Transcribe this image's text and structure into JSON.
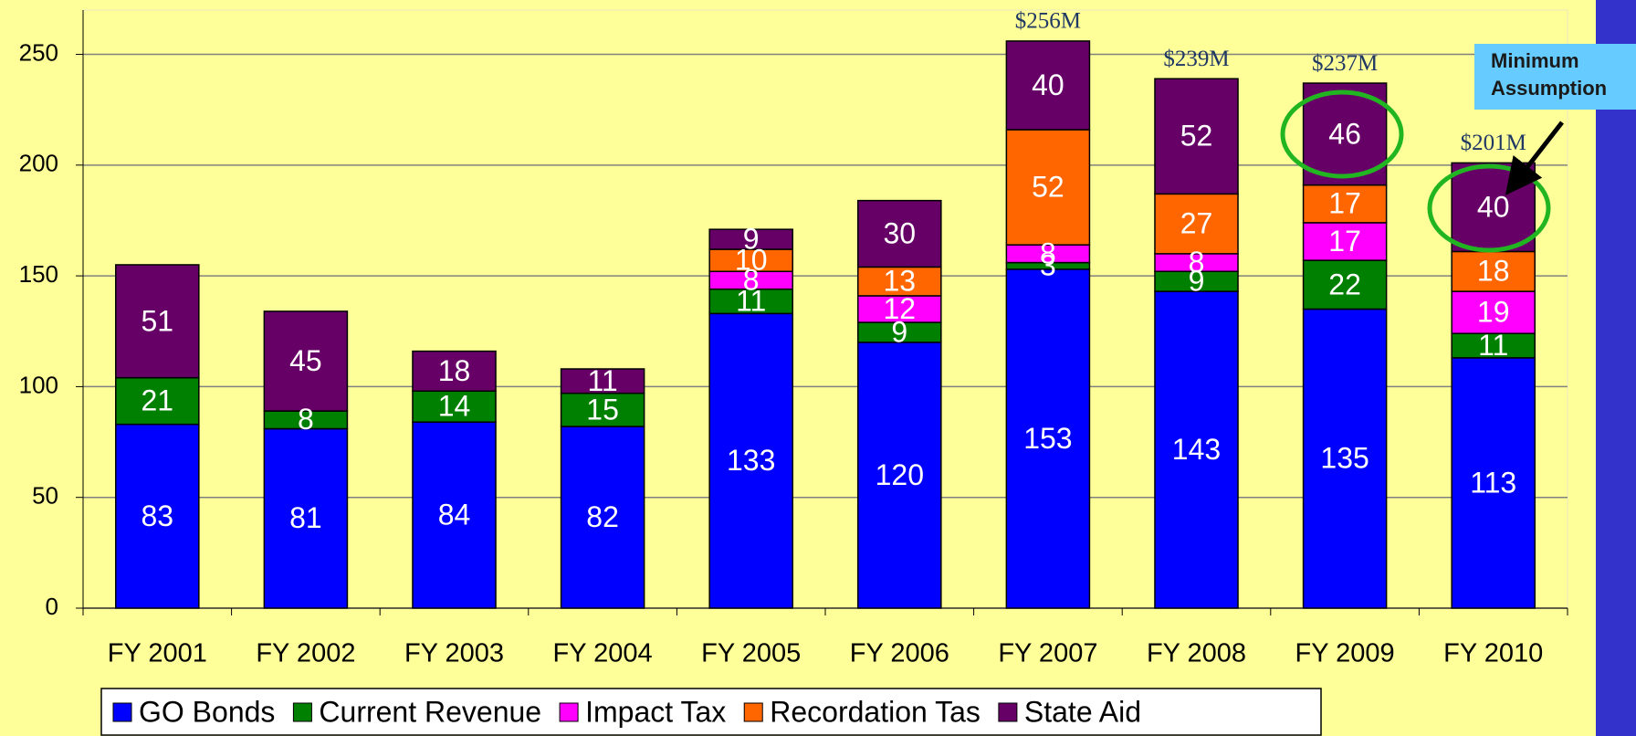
{
  "chart_data": {
    "type": "stacked_bar",
    "categories": [
      "FY 2001",
      "FY 2002",
      "FY 2003",
      "FY 2004",
      "FY 2005",
      "FY 2006",
      "FY 2007",
      "FY 2008",
      "FY 2009",
      "FY 2010"
    ],
    "series": [
      {
        "name": "GO Bonds",
        "color": "#0000ff",
        "values": [
          83,
          81,
          84,
          82,
          133,
          120,
          153,
          143,
          135,
          113
        ]
      },
      {
        "name": "Current Revenue",
        "color": "#008000",
        "values": [
          21,
          8,
          14,
          15,
          11,
          9,
          3,
          9,
          22,
          11
        ]
      },
      {
        "name": "Impact Tax",
        "color": "#ff00ff",
        "values": [
          null,
          null,
          null,
          null,
          8,
          12,
          8,
          8,
          17,
          19
        ]
      },
      {
        "name": "Recordation Tas",
        "color": "#ff6600",
        "values": [
          null,
          null,
          null,
          null,
          10,
          13,
          52,
          27,
          17,
          18
        ]
      },
      {
        "name": "State Aid",
        "color": "#660066",
        "values": [
          51,
          45,
          18,
          11,
          9,
          30,
          40,
          52,
          46,
          40
        ]
      }
    ],
    "ylim": [
      0,
      270
    ],
    "yticks": [
      0,
      50,
      100,
      150,
      200,
      250
    ],
    "grid": true,
    "total_annotations": [
      {
        "x": "FY 2007",
        "value": 256,
        "label": "$256M"
      },
      {
        "x": "FY 2008",
        "value": 239,
        "label": "$239M"
      },
      {
        "x": "FY 2009",
        "value": 237,
        "label": "$237M"
      },
      {
        "x": "FY 2010",
        "value": 201,
        "label": "$201M"
      }
    ],
    "callout": [
      "Minimum",
      "Assumption"
    ],
    "legend": "bottom"
  }
}
